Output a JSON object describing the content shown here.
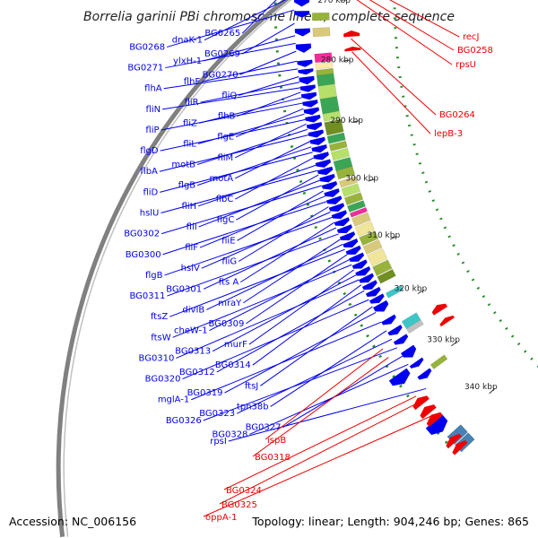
{
  "title": "Borrelia garinii PBi chromosome linear, complete sequence",
  "footer": {
    "accession": "Accession: NC_006156",
    "summary": "Topology: linear; Length: 904,246 bp; Genes: 865"
  },
  "colors": {
    "forward_feature": "#0000ee",
    "reverse_feature": "#ee0000",
    "backbone": "#808080",
    "cog_track_dots": "#2e8b2e"
  },
  "scale_ticks": [
    {
      "label": "270 kbp",
      "angle": 180.0
    },
    {
      "label": "280 kbp",
      "angle": 185.9
    },
    {
      "label": "290 kbp",
      "angle": 191.9
    },
    {
      "label": "300 kbp",
      "angle": 197.8
    },
    {
      "label": "310 kbp",
      "angle": 203.8
    },
    {
      "label": "320 kbp",
      "angle": 209.7
    },
    {
      "label": "330 kbp",
      "angle": 215.7
    },
    {
      "label": "340 kbp",
      "angle": 221.6
    }
  ],
  "gene_labels_forward": [
    {
      "text": "BG0265",
      "angle": 178.4
    },
    {
      "text": "dnaK-1",
      "angle": 179.6
    },
    {
      "text": "BG0268",
      "angle": 180.9
    },
    {
      "text": "BG0269",
      "angle": 182.1
    },
    {
      "text": "ylxH-1",
      "angle": 183.2
    },
    {
      "text": "BG0271",
      "angle": 183.9
    },
    {
      "text": "BG0270",
      "angle": 184.6
    },
    {
      "text": "flhF",
      "angle": 185.5
    },
    {
      "text": "flhA",
      "angle": 186.2
    },
    {
      "text": "fliQ",
      "angle": 186.9
    },
    {
      "text": "fliR",
      "angle": 187.4
    },
    {
      "text": "fliN",
      "angle": 187.9
    },
    {
      "text": "flhB",
      "angle": 188.3
    },
    {
      "text": "fliZ",
      "angle": 188.8
    },
    {
      "text": "fliP",
      "angle": 189.3
    },
    {
      "text": "flgE",
      "angle": 189.8
    },
    {
      "text": "fliL",
      "angle": 190.3
    },
    {
      "text": "flgD",
      "angle": 190.8
    },
    {
      "text": "fliM",
      "angle": 191.2
    },
    {
      "text": "motB",
      "angle": 191.7
    },
    {
      "text": "flbA",
      "angle": 192.2
    },
    {
      "text": "motA",
      "angle": 192.8
    },
    {
      "text": "flgB",
      "angle": 193.3
    },
    {
      "text": "fliD",
      "angle": 193.8
    },
    {
      "text": "flbC",
      "angle": 194.3
    },
    {
      "text": "fliH",
      "angle": 195.0
    },
    {
      "text": "hslU",
      "angle": 195.5
    },
    {
      "text": "flgC",
      "angle": 195.9
    },
    {
      "text": "fliI",
      "angle": 196.4
    },
    {
      "text": "BG0302",
      "angle": 196.9
    },
    {
      "text": "fliE",
      "angle": 197.4
    },
    {
      "text": "fliF",
      "angle": 197.9
    },
    {
      "text": "BG0300",
      "angle": 198.4
    },
    {
      "text": "fliG",
      "angle": 198.9
    },
    {
      "text": "hslV",
      "angle": 199.4
    },
    {
      "text": "flgB",
      "angle": 199.9
    },
    {
      "text": "fts A",
      "angle": 200.4
    },
    {
      "text": "BG0301",
      "angle": 200.9
    },
    {
      "text": "BG0311",
      "angle": 201.5
    },
    {
      "text": "mraY",
      "angle": 202.0
    },
    {
      "text": "divIB",
      "angle": 202.5
    },
    {
      "text": "ftsZ",
      "angle": 203.0
    },
    {
      "text": "BG0309",
      "angle": 203.5
    },
    {
      "text": "cheW-1",
      "angle": 204.0
    },
    {
      "text": "ftsW",
      "angle": 204.5
    },
    {
      "text": "murF",
      "angle": 205.0
    },
    {
      "text": "BG0313",
      "angle": 205.5
    },
    {
      "text": "BG0310",
      "angle": 206.0
    },
    {
      "text": "BG0314",
      "angle": 206.5
    },
    {
      "text": "BG0312",
      "angle": 207.1
    },
    {
      "text": "BG0320",
      "angle": 208.0
    },
    {
      "text": "ftsJ",
      "angle": 208.7
    },
    {
      "text": "BG0319",
      "angle": 209.3
    },
    {
      "text": "mglA-1",
      "angle": 210.3
    },
    {
      "text": "tpn38b",
      "angle": 211.2
    },
    {
      "text": "BG0323",
      "angle": 212.1
    },
    {
      "text": "BG0326",
      "angle": 213.0
    },
    {
      "text": "BG0327",
      "angle": 213.9
    },
    {
      "text": "BG0328",
      "angle": 214.8
    },
    {
      "text": "rpsI",
      "angle": 217.5
    }
  ],
  "gene_labels_reverse": [
    {
      "text": "recJ",
      "angle": 177.9
    },
    {
      "text": "BG0258",
      "angle": 178.8
    },
    {
      "text": "rpsU",
      "angle": 179.5
    },
    {
      "text": "BG0264",
      "angle": 183.8
    },
    {
      "text": "lepB-3",
      "angle": 185.1
    },
    {
      "text": "ispB",
      "angle": 212.4
    },
    {
      "text": "BG0318",
      "angle": 213.3
    },
    {
      "text": "BG0324",
      "angle": 217.5
    },
    {
      "text": "BG0325",
      "angle": 218.1
    },
    {
      "text": "oppA-1",
      "angle": 219.7
    }
  ]
}
